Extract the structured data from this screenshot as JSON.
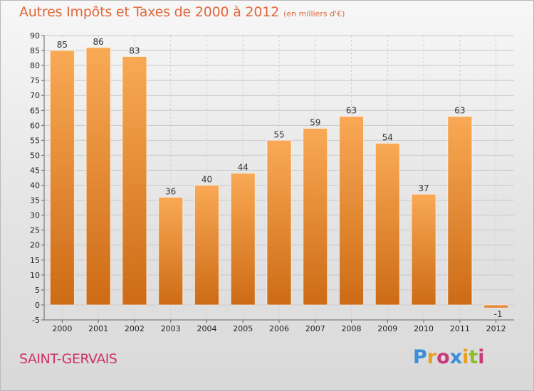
{
  "title": "Autres Impôts et Taxes de 2000 à 2012",
  "unit": "(en milliers d'€)",
  "city": "SAINT-GERVAIS",
  "logo": {
    "letters": [
      "P",
      "r",
      "o",
      "x",
      "i",
      "t",
      "i"
    ],
    "colors": [
      "#3a8fd8",
      "#e9a020",
      "#c83a7a",
      "#3a8fd8",
      "#e9a020",
      "#8cbf2a",
      "#c83a7a"
    ]
  },
  "colors": {
    "bar_light": "#f8a54e",
    "bar_dark": "#cc6a14",
    "title": "#e0673a",
    "city": "#cc3366"
  },
  "chart_data": {
    "type": "bar",
    "title": "Autres Impôts et Taxes de 2000 à 2012",
    "categories": [
      "2000",
      "2001",
      "2002",
      "2003",
      "2004",
      "2005",
      "2006",
      "2007",
      "2008",
      "2009",
      "2010",
      "2011",
      "2012"
    ],
    "values": [
      85,
      86,
      83,
      36,
      40,
      44,
      55,
      59,
      63,
      54,
      37,
      63,
      -1
    ],
    "value_labels": [
      "85",
      "86",
      "83",
      "36",
      "40",
      "44",
      "55",
      "59",
      "63",
      "54",
      "37",
      "63",
      "-1"
    ],
    "ylim": [
      -5,
      90
    ],
    "yticks": [
      -5,
      0,
      5,
      10,
      15,
      20,
      25,
      30,
      35,
      40,
      45,
      50,
      55,
      60,
      65,
      70,
      75,
      80,
      85,
      90
    ],
    "grid": true
  }
}
